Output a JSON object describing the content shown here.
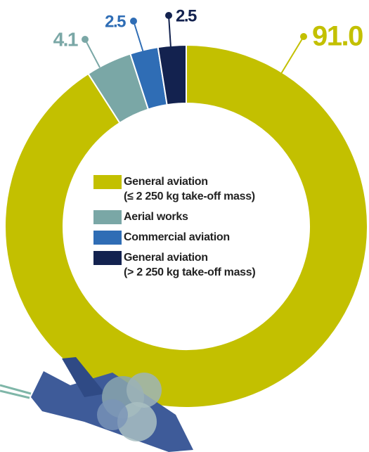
{
  "chart_data": {
    "type": "pie",
    "donut": true,
    "categories": [
      "General aviation\n(≤ 2 250 kg take-off mass)",
      "Aerial works",
      "Commercial aviation",
      "General aviation\n(> 2 250 kg take-off mass)"
    ],
    "values": [
      91.0,
      4.1,
      2.5,
      2.5
    ],
    "value_labels": [
      "91.0",
      "4.1",
      "2.5",
      "2.5"
    ],
    "colors": [
      "#c3c000",
      "#7aa7a6",
      "#2f6db5",
      "#13224f"
    ],
    "legend": "center"
  }
}
